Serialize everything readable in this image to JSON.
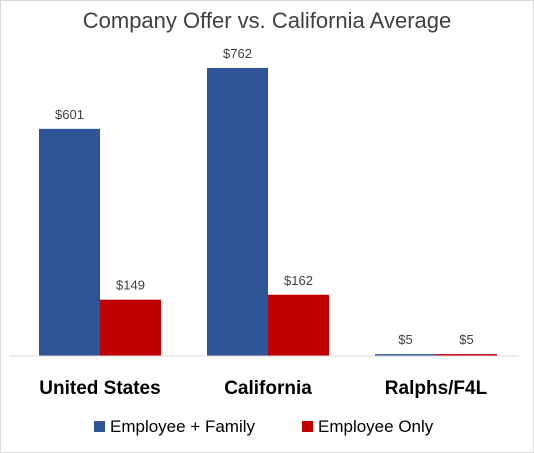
{
  "chart_data": {
    "type": "bar",
    "title": "Company Offer vs. California Average",
    "categories": [
      "United States",
      "California",
      "Ralphs/F4L"
    ],
    "series": [
      {
        "name": "Employee + Family",
        "color": "#2f5597",
        "values": [
          601,
          762,
          5
        ],
        "labels": [
          "$601",
          "$762",
          "$5"
        ]
      },
      {
        "name": "Employee Only",
        "color": "#c00000",
        "values": [
          149,
          162,
          5
        ],
        "labels": [
          "$149",
          "$162",
          "$5"
        ]
      }
    ],
    "ylim": [
      0,
      762
    ],
    "grid": false,
    "legend_position": "bottom"
  }
}
